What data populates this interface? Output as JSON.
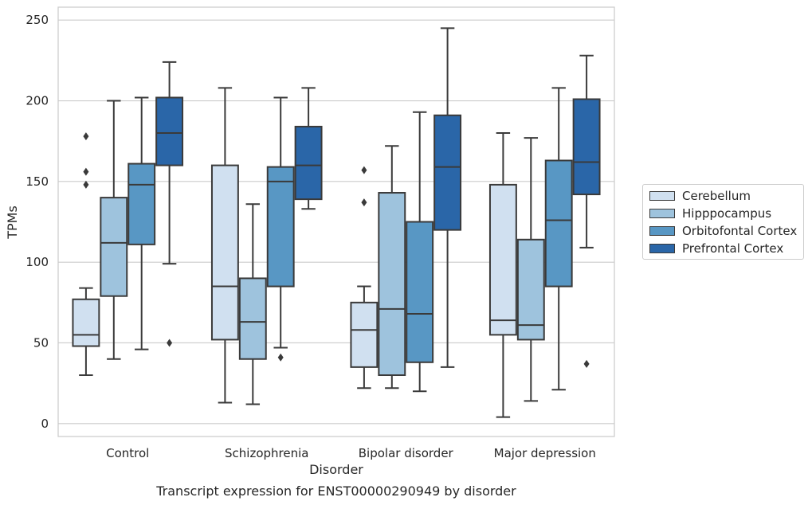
{
  "chart_data": {
    "type": "box",
    "title": "Transcript expression for ENST00000290949 by disorder",
    "xlabel": "Disorder",
    "ylabel": "TPMs",
    "ylim": [
      -8,
      258
    ],
    "yticks": [
      0,
      50,
      100,
      150,
      200,
      250
    ],
    "grid": true,
    "legend_position": "right",
    "categories": [
      "Control",
      "Schizophrenia",
      "Bipolar disorder",
      "Major depression"
    ],
    "series": [
      {
        "name": "Cerebellum",
        "color": "#d0e0f0",
        "boxes": [
          {
            "whisker_low": 30,
            "q1": 48,
            "median": 55,
            "q3": 77,
            "whisker_high": 84,
            "outliers": [
              178,
              156,
              148
            ]
          },
          {
            "whisker_low": 13,
            "q1": 52,
            "median": 85,
            "q3": 160,
            "whisker_high": 208,
            "outliers": []
          },
          {
            "whisker_low": 22,
            "q1": 35,
            "median": 58,
            "q3": 75,
            "whisker_high": 85,
            "outliers": [
              157,
              137
            ]
          },
          {
            "whisker_low": 4,
            "q1": 55,
            "median": 64,
            "q3": 148,
            "whisker_high": 180,
            "outliers": []
          }
        ]
      },
      {
        "name": "Hipppocampus",
        "color": "#9ec3dd",
        "boxes": [
          {
            "whisker_low": 40,
            "q1": 79,
            "median": 112,
            "q3": 140,
            "whisker_high": 200,
            "outliers": []
          },
          {
            "whisker_low": 12,
            "q1": 40,
            "median": 63,
            "q3": 90,
            "whisker_high": 136,
            "outliers": []
          },
          {
            "whisker_low": 22,
            "q1": 30,
            "median": 71,
            "q3": 143,
            "whisker_high": 172,
            "outliers": []
          },
          {
            "whisker_low": 14,
            "q1": 52,
            "median": 61,
            "q3": 114,
            "whisker_high": 177,
            "outliers": []
          }
        ]
      },
      {
        "name": "Orbitofontal Cortex",
        "color": "#5897c4",
        "boxes": [
          {
            "whisker_low": 46,
            "q1": 111,
            "median": 148,
            "q3": 161,
            "whisker_high": 202,
            "outliers": []
          },
          {
            "whisker_low": 47,
            "q1": 85,
            "median": 150,
            "q3": 159,
            "whisker_high": 202,
            "outliers": [
              41
            ]
          },
          {
            "whisker_low": 20,
            "q1": 38,
            "median": 68,
            "q3": 125,
            "whisker_high": 193,
            "outliers": []
          },
          {
            "whisker_low": 21,
            "q1": 85,
            "median": 126,
            "q3": 163,
            "whisker_high": 208,
            "outliers": []
          }
        ]
      },
      {
        "name": "Prefrontal Cortex",
        "color": "#2a66a8",
        "boxes": [
          {
            "whisker_low": 99,
            "q1": 160,
            "median": 180,
            "q3": 202,
            "whisker_high": 224,
            "outliers": [
              50
            ]
          },
          {
            "whisker_low": 133,
            "q1": 139,
            "median": 160,
            "q3": 184,
            "whisker_high": 208,
            "outliers": []
          },
          {
            "whisker_low": 35,
            "q1": 120,
            "median": 159,
            "q3": 191,
            "whisker_high": 245,
            "outliers": []
          },
          {
            "whisker_low": 109,
            "q1": 142,
            "median": 162,
            "q3": 201,
            "whisker_high": 228,
            "outliers": [
              37
            ]
          }
        ]
      }
    ]
  },
  "colors": {
    "grid": "#cccccc",
    "frame": "#cccccc",
    "box_edge": "#3a3a3a",
    "text": "#262626"
  }
}
